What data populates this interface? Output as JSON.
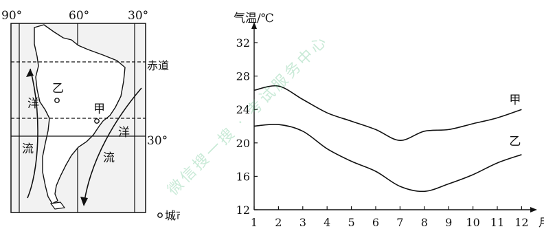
{
  "map": {
    "lon_labels": [
      "90°",
      "60°",
      "30°"
    ],
    "equator_label": "赤道",
    "lat30_label": "30°",
    "city_a_label": "甲",
    "city_b_label": "乙",
    "current_char_1": "洋",
    "current_char_2": "流",
    "legend_label": "城市",
    "colors": {
      "land": "#ffffff",
      "ocean": "#eeeeee",
      "ink": "#111111",
      "watermark": "#7fcf9f"
    }
  },
  "chart_data": {
    "type": "line",
    "xlabel": "月",
    "ylabel": "气温/℃",
    "x": [
      1,
      2,
      3,
      4,
      5,
      6,
      7,
      8,
      9,
      10,
      11,
      12
    ],
    "xlim": [
      1,
      12.3
    ],
    "ylim": [
      12,
      32
    ],
    "yticks": [
      12,
      16,
      20,
      24,
      28,
      32
    ],
    "grid": false,
    "series": [
      {
        "name": "甲",
        "values": [
          26.3,
          26.8,
          25.2,
          23.6,
          22.6,
          21.6,
          20.3,
          21.4,
          21.6,
          22.3,
          23.0,
          24.0
        ]
      },
      {
        "name": "乙",
        "values": [
          22.0,
          22.2,
          21.4,
          19.3,
          17.8,
          16.6,
          14.8,
          14.2,
          15.1,
          16.2,
          17.6,
          18.6
        ]
      }
    ]
  },
  "watermark_text": "微信搜一搜 · 考试服务中心"
}
